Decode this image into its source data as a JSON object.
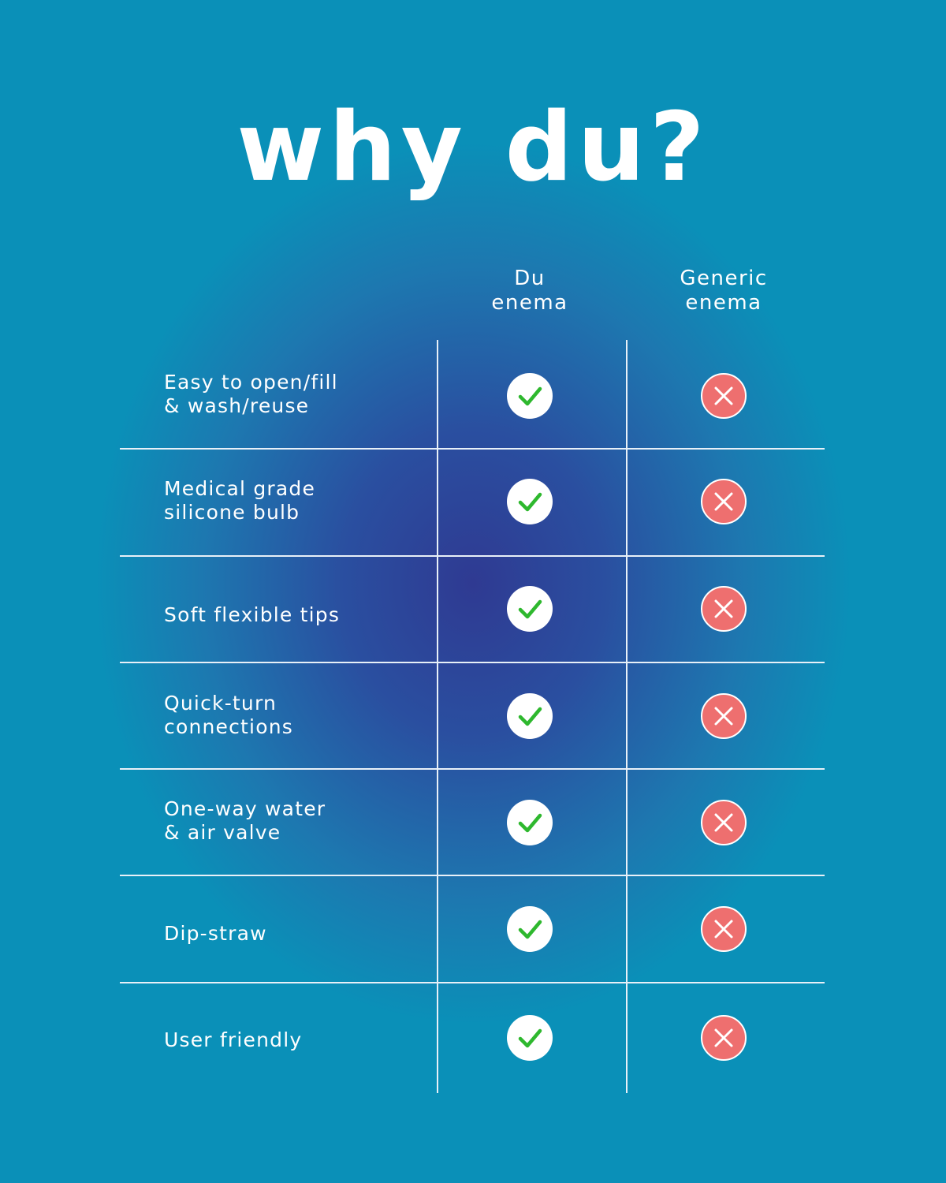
{
  "title": "why du?",
  "columns": {
    "du": "Du\nenema",
    "generic": "Generic\nenema"
  },
  "colors": {
    "check": "#2eb82e",
    "cross_bg": "#ee6f6f",
    "line": "#e8f0f8"
  },
  "rows": [
    {
      "label": "Easy to open/fill\n& wash/reuse",
      "du": "check-icon",
      "generic": "x-icon"
    },
    {
      "label": "Medical grade\nsilicone bulb",
      "du": "check-icon",
      "generic": "x-icon"
    },
    {
      "label": "Soft flexible tips",
      "du": "check-icon",
      "generic": "x-icon"
    },
    {
      "label": "Quick-turn\nconnections",
      "du": "check-icon",
      "generic": "x-icon"
    },
    {
      "label": "One-way water\n& air valve",
      "du": "check-icon",
      "generic": "x-icon"
    },
    {
      "label": "Dip-straw",
      "du": "check-icon",
      "generic": "x-icon"
    },
    {
      "label": "User friendly",
      "du": "check-icon",
      "generic": "x-icon"
    }
  ]
}
